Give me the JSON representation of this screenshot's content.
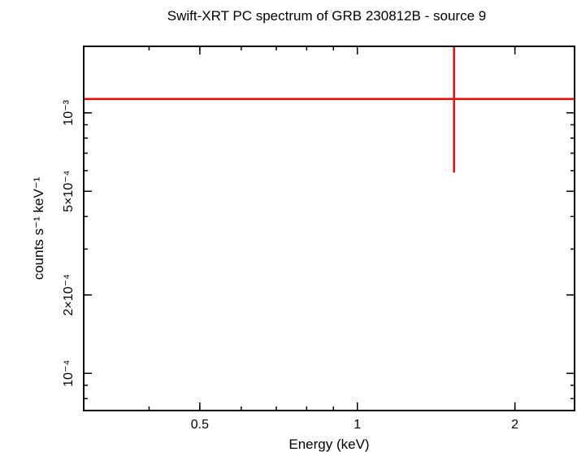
{
  "chart_data": {
    "type": "scatter",
    "title": "Swift-XRT PC spectrum of GRB 230812B - source 9",
    "xlabel": "Energy (keV)",
    "ylabel": "counts s⁻¹ keV⁻¹",
    "x_scale": "log",
    "y_scale": "log",
    "xlim": [
      0.3,
      2.6
    ],
    "ylim": [
      7.2e-05,
      0.0018
    ],
    "x_ticks": [
      {
        "value": 0.5,
        "label": "0.5"
      },
      {
        "value": 1,
        "label": "1"
      },
      {
        "value": 2,
        "label": "2"
      }
    ],
    "y_ticks": [
      {
        "value": 0.0001,
        "label": "10⁻⁴"
      },
      {
        "value": 0.0002,
        "label": "2×10⁻⁴"
      },
      {
        "value": 0.0005,
        "label": "5×10⁻⁴"
      },
      {
        "value": 0.001,
        "label": "10⁻³"
      }
    ],
    "grid": false,
    "series": [
      {
        "color": "#ff0000",
        "points": [
          {
            "x": 1.53,
            "x_low": 0.3,
            "x_high": 2.6,
            "y": 0.00113,
            "y_low": 0.00059,
            "y_high": 0.0018
          }
        ]
      }
    ]
  }
}
